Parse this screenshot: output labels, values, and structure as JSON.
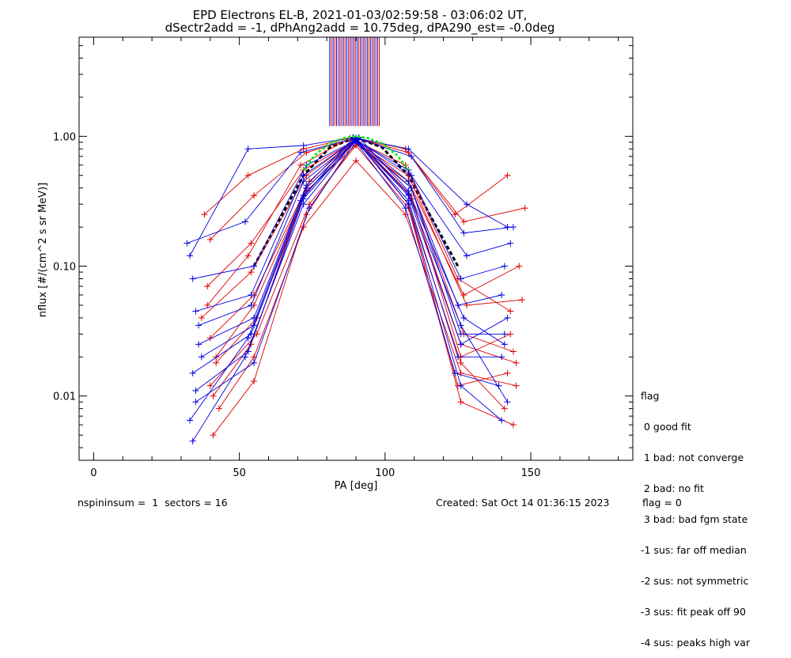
{
  "title_line1": "EPD Electrons EL-B, 2021-01-03/02:59:58 - 03:06:02 UT,",
  "title_line2": "dSectr2add = -1, dPhAng2add = 10.75deg, dPA290_est=  -0.0deg",
  "footer": {
    "left": "nspininsum =  1  sectors = 16",
    "created": "Created: Sat Oct 14 01:36:15 2023",
    "flag": "flag = 0"
  },
  "legend": {
    "title": "flag",
    "items": [
      " 0 good fit",
      " 1 bad: not converge",
      " 2 bad: no fit",
      " 3 bad: bad fgm state",
      "-1 sus: far off median",
      "-2 sus: not symmetric",
      "-3 sus: fit peak off 90",
      "-4 sus: peaks high var"
    ]
  },
  "colors": {
    "series_a": "#dd0000",
    "series_b": "#0000dd",
    "fit": "#00ee00",
    "median": "#000000",
    "axes": "#000000"
  },
  "chart_data": {
    "type": "line",
    "xlabel": "PA [deg]",
    "ylabel": "nflux [#/(cm^2 s sr MeV)]",
    "xlim": [
      -5,
      185
    ],
    "ylim": [
      0.0032,
      5.8
    ],
    "yscale": "log",
    "xticks": [
      0,
      50,
      100,
      150
    ],
    "yticks": [
      0.01,
      0.1,
      1.0
    ],
    "ytick_labels": [
      "0.01",
      "0.10",
      "1.00"
    ],
    "x_minor_ticks": [
      10,
      20,
      30,
      40,
      60,
      70,
      80,
      90,
      110,
      120,
      130,
      140,
      160,
      170,
      180
    ],
    "markers_at_90": {
      "x_range": [
        81,
        98
      ],
      "y_from": 1.2,
      "y_to": 5.8,
      "count": 30
    },
    "median_curve": {
      "x": [
        55,
        72,
        81,
        90,
        99,
        108,
        125
      ],
      "y": [
        0.1,
        0.5,
        0.82,
        0.98,
        0.82,
        0.5,
        0.1
      ]
    },
    "fit_curve": {
      "x": [
        72,
        76,
        81,
        86,
        90,
        94,
        99,
        104,
        108
      ],
      "y": [
        0.55,
        0.72,
        0.88,
        0.97,
        1.0,
        0.97,
        0.88,
        0.72,
        0.55
      ]
    },
    "series": [
      {
        "color": "red",
        "x": [
          41,
          55,
          73,
          90,
          108,
          126,
          144
        ],
        "y": [
          0.005,
          0.013,
          0.25,
          0.95,
          0.3,
          0.009,
          0.006
        ]
      },
      {
        "color": "red",
        "x": [
          38,
          53,
          72,
          89,
          107,
          124,
          142
        ],
        "y": [
          0.25,
          0.5,
          0.8,
          0.98,
          0.8,
          0.25,
          0.5
        ]
      },
      {
        "color": "red",
        "x": [
          40,
          55,
          73,
          90,
          108,
          127,
          148
        ],
        "y": [
          0.16,
          0.35,
          0.75,
          0.97,
          0.75,
          0.22,
          0.28
        ]
      },
      {
        "color": "red",
        "x": [
          39,
          54,
          72,
          89,
          108,
          127,
          146
        ],
        "y": [
          0.07,
          0.15,
          0.55,
          0.9,
          0.45,
          0.06,
          0.1
        ]
      },
      {
        "color": "red",
        "x": [
          42,
          55,
          73,
          90,
          109,
          126,
          143
        ],
        "y": [
          0.02,
          0.05,
          0.4,
          0.95,
          0.35,
          0.02,
          0.03
        ]
      },
      {
        "color": "red",
        "x": [
          40,
          56,
          74,
          90,
          108,
          125,
          142
        ],
        "y": [
          0.012,
          0.03,
          0.3,
          0.85,
          0.28,
          0.012,
          0.015
        ]
      },
      {
        "color": "red",
        "x": [
          43,
          55,
          72,
          90,
          107,
          126,
          145
        ],
        "y": [
          0.008,
          0.02,
          0.2,
          0.65,
          0.25,
          0.015,
          0.012
        ]
      },
      {
        "color": "red",
        "x": [
          37,
          54,
          73,
          89,
          108,
          128,
          147
        ],
        "y": [
          0.04,
          0.09,
          0.5,
          0.92,
          0.5,
          0.05,
          0.055
        ]
      },
      {
        "color": "red",
        "x": [
          40,
          55,
          74,
          90,
          109,
          127,
          144
        ],
        "y": [
          0.028,
          0.06,
          0.45,
          0.96,
          0.4,
          0.03,
          0.022
        ]
      },
      {
        "color": "red",
        "x": [
          41,
          54,
          72,
          90,
          108,
          126,
          141
        ],
        "y": [
          0.01,
          0.025,
          0.35,
          0.93,
          0.3,
          0.018,
          0.008
        ]
      },
      {
        "color": "red",
        "x": [
          39,
          53,
          71,
          88,
          107,
          125,
          143
        ],
        "y": [
          0.05,
          0.12,
          0.6,
          0.97,
          0.6,
          0.08,
          0.045
        ]
      },
      {
        "color": "red",
        "x": [
          42,
          56,
          73,
          91,
          109,
          126,
          145
        ],
        "y": [
          0.018,
          0.04,
          0.38,
          0.9,
          0.33,
          0.025,
          0.018
        ]
      },
      {
        "color": "blue",
        "x": [
          34,
          52,
          72,
          90,
          108,
          126,
          140
        ],
        "y": [
          0.0045,
          0.02,
          0.3,
          0.95,
          0.3,
          0.012,
          0.0065
        ]
      },
      {
        "color": "blue",
        "x": [
          33,
          53,
          72,
          89,
          108,
          128,
          142
        ],
        "y": [
          0.12,
          0.8,
          0.85,
          0.98,
          0.8,
          0.3,
          0.2
        ]
      },
      {
        "color": "blue",
        "x": [
          32,
          52,
          71,
          90,
          109,
          127,
          144
        ],
        "y": [
          0.15,
          0.22,
          0.75,
          0.97,
          0.7,
          0.18,
          0.2
        ]
      },
      {
        "color": "blue",
        "x": [
          34,
          55,
          73,
          90,
          108,
          126,
          141
        ],
        "y": [
          0.08,
          0.1,
          0.6,
          0.93,
          0.55,
          0.08,
          0.1
        ]
      },
      {
        "color": "blue",
        "x": [
          35,
          54,
          72,
          90,
          108,
          125,
          140
        ],
        "y": [
          0.045,
          0.06,
          0.5,
          0.95,
          0.45,
          0.05,
          0.06
        ]
      },
      {
        "color": "blue",
        "x": [
          36,
          55,
          73,
          89,
          109,
          126,
          141
        ],
        "y": [
          0.025,
          0.04,
          0.42,
          0.96,
          0.4,
          0.03,
          0.03
        ]
      },
      {
        "color": "blue",
        "x": [
          34,
          54,
          72,
          90,
          108,
          125,
          140
        ],
        "y": [
          0.015,
          0.03,
          0.35,
          0.92,
          0.32,
          0.02,
          0.02
        ]
      },
      {
        "color": "blue",
        "x": [
          35,
          55,
          74,
          90,
          107,
          124,
          139
        ],
        "y": [
          0.009,
          0.018,
          0.28,
          0.9,
          0.28,
          0.015,
          0.012
        ]
      },
      {
        "color": "blue",
        "x": [
          33,
          53,
          71,
          89,
          108,
          126,
          142
        ],
        "y": [
          0.0065,
          0.028,
          0.32,
          0.97,
          0.35,
          0.025,
          0.04
        ]
      },
      {
        "color": "blue",
        "x": [
          36,
          54,
          72,
          90,
          109,
          128,
          143
        ],
        "y": [
          0.035,
          0.05,
          0.45,
          0.94,
          0.5,
          0.12,
          0.15
        ]
      },
      {
        "color": "blue",
        "x": [
          37,
          55,
          73,
          91,
          108,
          127,
          141
        ],
        "y": [
          0.02,
          0.035,
          0.4,
          0.98,
          0.38,
          0.04,
          0.025
        ]
      },
      {
        "color": "blue",
        "x": [
          35,
          53,
          72,
          90,
          108,
          126,
          142
        ],
        "y": [
          0.011,
          0.022,
          0.33,
          0.95,
          0.36,
          0.035,
          0.009
        ]
      }
    ]
  }
}
